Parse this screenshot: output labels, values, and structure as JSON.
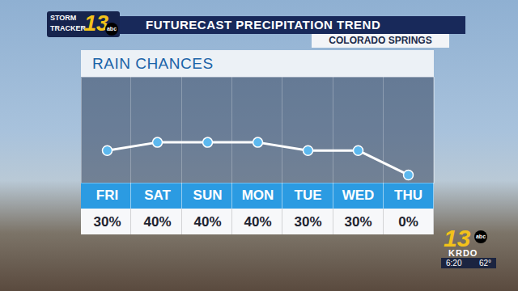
{
  "chart_data": {
    "type": "line",
    "title": "RAIN CHANCES",
    "categories": [
      "FRI",
      "SAT",
      "SUN",
      "MON",
      "TUE",
      "WED",
      "THU"
    ],
    "values": [
      30,
      40,
      40,
      40,
      30,
      30,
      0
    ],
    "value_labels": [
      "30%",
      "40%",
      "40%",
      "40%",
      "30%",
      "30%",
      "0%"
    ],
    "data_labels": true,
    "color": "#ffffff",
    "marker": "circle",
    "ylim": [
      -10,
      120
    ],
    "tick_labels": "x",
    "grid": false
  },
  "screen": {
    "banner": "FUTURECAST PRECIPITATION TREND",
    "location": "COLORADO SPRINGS",
    "logo": [
      "STORM",
      "TRACKER",
      "13",
      "abc"
    ],
    "station": [
      "13",
      "abc",
      "KRDO"
    ],
    "time": "6:20",
    "temperature": "62°"
  }
}
